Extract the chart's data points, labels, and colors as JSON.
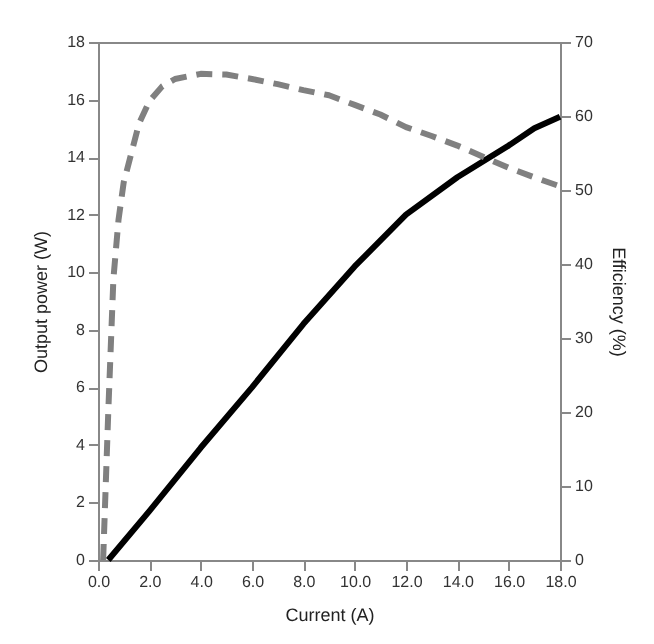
{
  "chart_data": {
    "type": "line",
    "xlabel": "Current (A)",
    "ylabel": "Output power (W)",
    "y2label": "Efficiency (%)",
    "xlim": [
      0,
      18
    ],
    "xticks": [
      {
        "value": 0,
        "label": "0.0"
      },
      {
        "value": 2,
        "label": "2.0"
      },
      {
        "value": 4,
        "label": "4.0"
      },
      {
        "value": 6,
        "label": "6.0"
      },
      {
        "value": 8,
        "label": "8.0"
      },
      {
        "value": 10,
        "label": "10.0"
      },
      {
        "value": 12,
        "label": "12.0"
      },
      {
        "value": 14,
        "label": "14.0"
      },
      {
        "value": 16,
        "label": "16.0"
      },
      {
        "value": 18,
        "label": "18.0"
      }
    ],
    "ylim": [
      0,
      18
    ],
    "yticks": [
      0,
      2,
      4,
      6,
      8,
      10,
      12,
      14,
      16,
      18
    ],
    "y2lim": [
      0,
      70
    ],
    "y2ticks": [
      0,
      10,
      20,
      30,
      40,
      50,
      60,
      70
    ],
    "grid": false,
    "series": [
      {
        "color": "#000000",
        "line_style": "solid",
        "x": [
          0.4,
          2,
          4,
          6,
          8,
          10,
          12,
          14,
          16,
          17,
          18
        ],
        "values": [
          0,
          1.7,
          3.9,
          6.0,
          8.2,
          10.2,
          12.0,
          13.3,
          14.4,
          15.0,
          15.4
        ]
      },
      {
        "color": "#808080",
        "line_style": "dashed",
        "axis": "y2",
        "x": [
          0.2,
          0.4,
          0.6,
          0.8,
          1.0,
          1.3,
          1.6,
          2.0,
          2.5,
          3.0,
          4.0,
          5.0,
          6.0,
          7.0,
          8.0,
          9.0,
          10,
          11,
          12,
          13,
          14,
          15,
          16,
          17,
          18
        ],
        "values": [
          0,
          20,
          38,
          46,
          51,
          55,
          59,
          62,
          64,
          65,
          65.7,
          65.6,
          65,
          64.3,
          63.5,
          62.8,
          61.5,
          60.2,
          58.5,
          57.3,
          56,
          54.5,
          53,
          51.7,
          50.5
        ]
      }
    ]
  }
}
